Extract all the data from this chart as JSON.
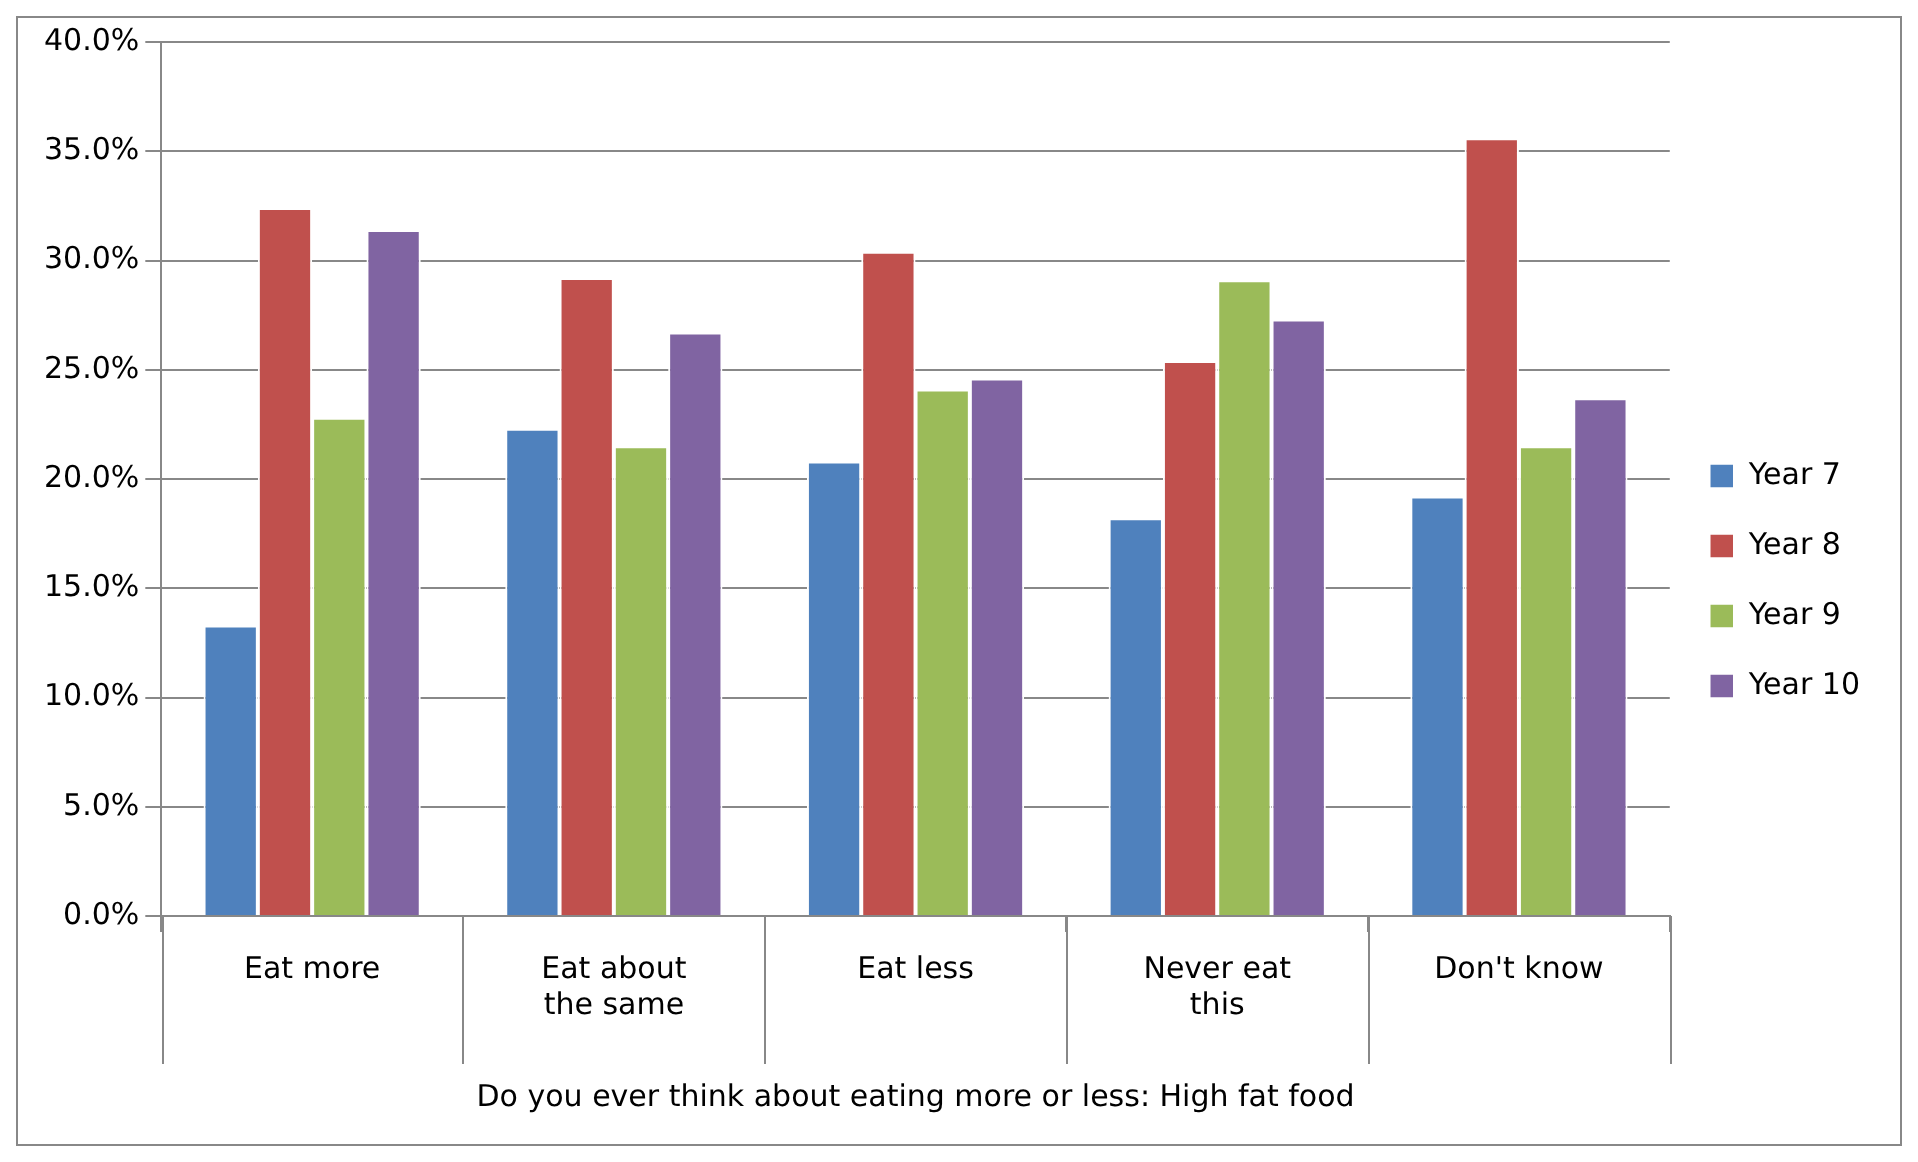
{
  "chart_data": {
    "type": "bar",
    "xlabel": "Do you ever think about eating more or less: High fat food",
    "categories": [
      "Eat more",
      "Eat about the same",
      "Eat less",
      "Never eat this",
      "Don't know"
    ],
    "series": [
      {
        "name": "Year 7",
        "color": "#4f81bd",
        "values": [
          13.3,
          22.3,
          20.8,
          18.2,
          19.2
        ]
      },
      {
        "name": "Year 8",
        "color": "#c0504d",
        "values": [
          32.4,
          29.2,
          30.4,
          25.4,
          35.6
        ]
      },
      {
        "name": "Year 9",
        "color": "#9bbb59",
        "values": [
          22.8,
          21.5,
          24.1,
          29.1,
          21.5
        ]
      },
      {
        "name": "Year 10",
        "color": "#8064a2",
        "values": [
          31.4,
          26.7,
          24.6,
          27.3,
          23.7
        ]
      }
    ],
    "ylim": [
      0,
      40
    ],
    "yticks": [
      {
        "value": 0,
        "label": "0.0%"
      },
      {
        "value": 5,
        "label": "5.0%"
      },
      {
        "value": 10,
        "label": "10.0%"
      },
      {
        "value": 15,
        "label": "15.0%"
      },
      {
        "value": 20,
        "label": "20.0%"
      },
      {
        "value": 25,
        "label": "25.0%"
      },
      {
        "value": 30,
        "label": "30.0%"
      },
      {
        "value": 35,
        "label": "35.0%"
      },
      {
        "value": 40,
        "label": "40.0%"
      }
    ],
    "grid": "y",
    "legend": "right"
  }
}
